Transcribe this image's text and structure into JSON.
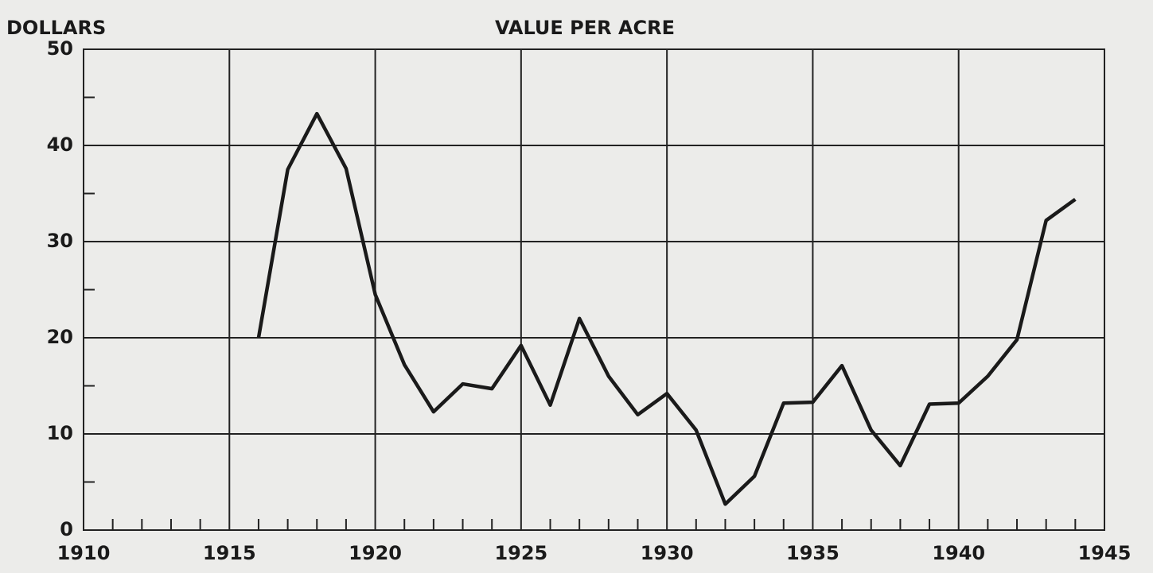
{
  "chart_data": {
    "type": "line",
    "title": "VALUE PER ACRE",
    "y_label": "DOLLARS",
    "x": [
      1916,
      1917,
      1918,
      1919,
      1920,
      1921,
      1922,
      1923,
      1924,
      1925,
      1926,
      1927,
      1928,
      1929,
      1930,
      1931,
      1932,
      1933,
      1934,
      1935,
      1936,
      1937,
      1938,
      1939,
      1940,
      1941,
      1942,
      1943,
      1944
    ],
    "series": [
      {
        "name": "Value per acre",
        "color": "#1a1a1a",
        "values": [
          20,
          37.5,
          43.3,
          37.6,
          24.5,
          17.2,
          12.3,
          15.2,
          14.7,
          19.2,
          13.0,
          22.0,
          16.0,
          12.0,
          14.2,
          10.4,
          2.7,
          5.6,
          13.2,
          13.3,
          17.1,
          10.4,
          6.7,
          13.1,
          13.2,
          16.0,
          19.8,
          32.2,
          34.4
        ]
      }
    ],
    "xlim": [
      1910,
      1945
    ],
    "xticks": [
      1910,
      1915,
      1920,
      1925,
      1930,
      1935,
      1940,
      1945
    ],
    "x_minor_ticks": [
      1911,
      1912,
      1913,
      1914,
      1916,
      1917,
      1918,
      1919,
      1921,
      1922,
      1923,
      1924,
      1926,
      1927,
      1928,
      1929,
      1931,
      1932,
      1933,
      1934,
      1936,
      1937,
      1938,
      1939,
      1941,
      1942,
      1943,
      1944
    ],
    "ylim": [
      0,
      50
    ],
    "yticks": [
      0,
      10,
      20,
      30,
      40,
      50
    ],
    "y_minor_ticks": [
      5,
      15,
      25,
      35,
      45
    ],
    "grid": true
  }
}
